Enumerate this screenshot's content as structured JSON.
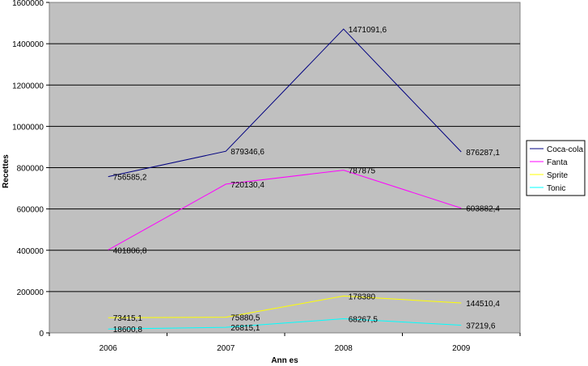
{
  "chart_data": {
    "type": "line",
    "categories": [
      "2006",
      "2007",
      "2008",
      "2009"
    ],
    "xlabel": "Ann es",
    "ylabel": "Recettes",
    "ylim": [
      0,
      1600000
    ],
    "yticks": [
      "0",
      "200000",
      "400000",
      "600000",
      "800000",
      "1000000",
      "1200000",
      "1400000",
      "1600000"
    ],
    "grid": true,
    "legend_position": "right",
    "plot_background": "#c0c0c0",
    "series": [
      {
        "name": "Coca-cola",
        "color": "#000080",
        "values": [
          756585.2,
          879346.6,
          1471091.6,
          876287.1
        ],
        "labels": [
          "756585,2",
          "879346,6",
          "1471091,6",
          "876287,1"
        ]
      },
      {
        "name": "Fanta",
        "color": "#ff00ff",
        "values": [
          401806.8,
          720130.4,
          787875,
          603882.4
        ],
        "labels": [
          "401806,8",
          "720130,4",
          "787875",
          "603882,4"
        ]
      },
      {
        "name": "Sprite",
        "color": "#ffff00",
        "values": [
          73415.1,
          75880.5,
          178380,
          144510.4
        ],
        "labels": [
          "73415,1",
          "75880,5",
          "178380",
          "144510,4"
        ]
      },
      {
        "name": "Tonic",
        "color": "#00ffff",
        "values": [
          18600.8,
          26815.1,
          68267.5,
          37219.6
        ],
        "labels": [
          "18600,8",
          "26815,1",
          "68267,5",
          "37219,6"
        ]
      }
    ]
  }
}
